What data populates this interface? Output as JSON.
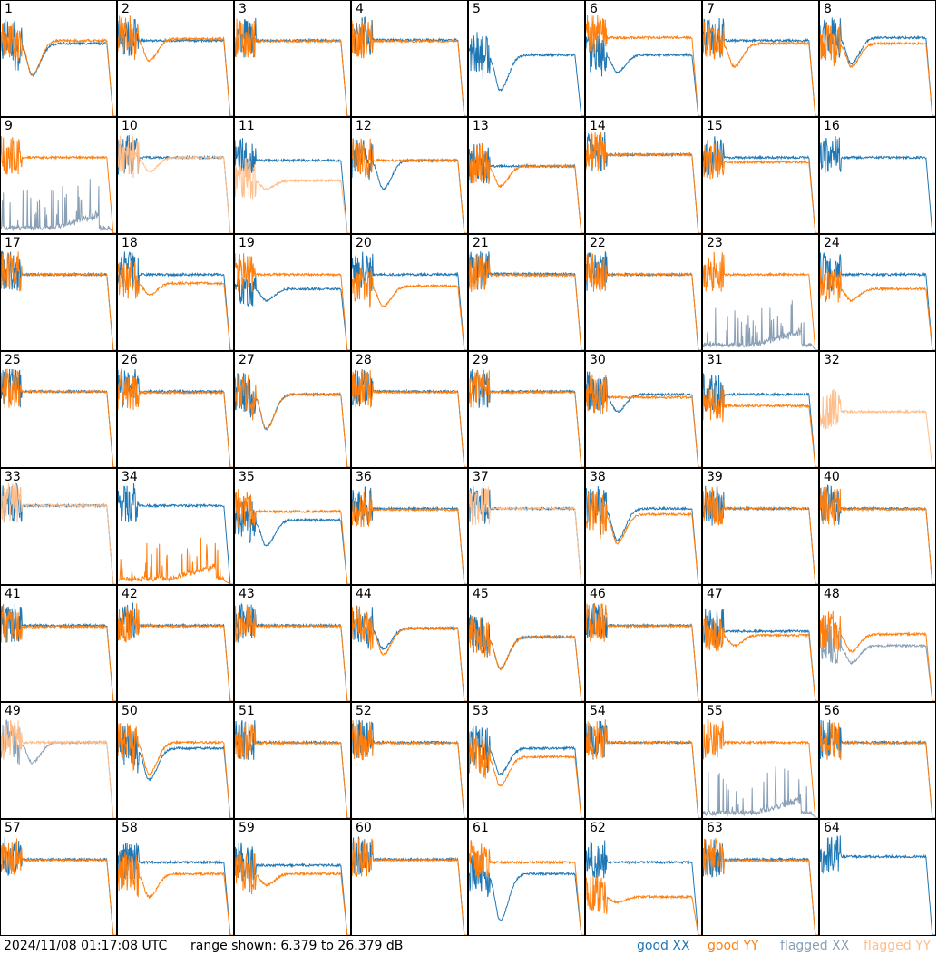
{
  "chart_data": {
    "type": "line",
    "ylim": [
      6.379,
      26.379
    ],
    "yunit": "dB",
    "grid": false,
    "legend_placement": "bottom-right",
    "legend": [
      {
        "label": "good XX",
        "color": "#1f77b4"
      },
      {
        "label": "good YY",
        "color": "#ff7f0e"
      },
      {
        "label": "flagged XX",
        "color": "#8aa0b6"
      },
      {
        "label": "flagged YY",
        "color": "#ffbe8a"
      }
    ],
    "panels": [
      {
        "label": "1",
        "xx": [
          19,
          13.5
        ],
        "yy": [
          19.5,
          13.5
        ]
      },
      {
        "label": "2",
        "xx": [
          19.5,
          null
        ],
        "yy": [
          19.8,
          16
        ]
      },
      {
        "label": "3",
        "xx": [
          19.5,
          null
        ],
        "yy": [
          19.4,
          null
        ]
      },
      {
        "label": "4",
        "xx": [
          19.6,
          null
        ],
        "yy": [
          19.4,
          null
        ]
      },
      {
        "label": "5",
        "xx": [
          17,
          10.9
        ],
        "yy": null
      },
      {
        "label": "6",
        "xx": [
          17,
          14
        ],
        "yy": [
          20,
          null
        ]
      },
      {
        "label": "7",
        "xx": [
          19.5,
          null
        ],
        "yy": [
          19,
          15
        ]
      },
      {
        "label": "8",
        "xx": [
          20,
          15.5
        ],
        "yy": [
          19,
          15
        ]
      },
      {
        "label": "9",
        "xx": [
          8,
          null
        ],
        "yy": [
          19.5,
          null
        ],
        "xx_flagged": true
      },
      {
        "label": "10",
        "xx": [
          19.5,
          null
        ],
        "yy": [
          19.5,
          17
        ],
        "yy_flagged": true
      },
      {
        "label": "11",
        "xx": [
          19,
          null
        ],
        "yy": [
          15.5,
          14
        ],
        "yy_flagged": true
      },
      {
        "label": "12",
        "xx": [
          19,
          14
        ],
        "yy": [
          19,
          null
        ]
      },
      {
        "label": "13",
        "xx": [
          18,
          null
        ],
        "yy": [
          18,
          14.5
        ]
      },
      {
        "label": "14",
        "xx": [
          20,
          null
        ],
        "yy": [
          20,
          null
        ]
      },
      {
        "label": "15",
        "xx": [
          19.5,
          null
        ],
        "yy": [
          18.7,
          null
        ]
      },
      {
        "label": "16",
        "xx": [
          19.5,
          null
        ],
        "yy": null
      },
      {
        "label": "17",
        "xx": [
          19.5,
          null
        ],
        "yy": [
          19.5,
          null
        ]
      },
      {
        "label": "18",
        "xx": [
          19.5,
          null
        ],
        "yy": [
          18,
          16
        ]
      },
      {
        "label": "19",
        "xx": [
          17,
          15
        ],
        "yy": [
          19.5,
          null
        ]
      },
      {
        "label": "20",
        "xx": [
          19.5,
          null
        ],
        "yy": [
          17.5,
          14
        ]
      },
      {
        "label": "21",
        "xx": [
          19.6,
          null
        ],
        "yy": [
          19.4,
          null
        ]
      },
      {
        "label": "22",
        "xx": [
          19.5,
          null
        ],
        "yy": [
          19.5,
          null
        ]
      },
      {
        "label": "23",
        "xx": [
          8,
          null
        ],
        "yy": [
          19.5,
          null
        ],
        "xx_flagged": true
      },
      {
        "label": "24",
        "xx": [
          19.5,
          null
        ],
        "yy": [
          17,
          15
        ]
      },
      {
        "label": "25",
        "xx": [
          19.5,
          null
        ],
        "yy": [
          19.5,
          null
        ]
      },
      {
        "label": "26",
        "xx": [
          19.5,
          null
        ],
        "yy": [
          19.3,
          null
        ]
      },
      {
        "label": "27",
        "xx": [
          19,
          13
        ],
        "yy": [
          19,
          13
        ]
      },
      {
        "label": "28",
        "xx": [
          19.5,
          null
        ],
        "yy": [
          19.4,
          null
        ]
      },
      {
        "label": "29",
        "xx": [
          19.5,
          null
        ],
        "yy": [
          19.4,
          null
        ]
      },
      {
        "label": "30",
        "xx": [
          19,
          16
        ],
        "yy": [
          18.5,
          null
        ]
      },
      {
        "label": "31",
        "xx": [
          19,
          null
        ],
        "yy": [
          17,
          null
        ]
      },
      {
        "label": "32",
        "xx": null,
        "yy": [
          16,
          null
        ],
        "yy_flagged": true
      },
      {
        "label": "33",
        "xx": [
          20,
          null
        ],
        "yy": [
          20,
          null
        ],
        "yy_flagged": true
      },
      {
        "label": "34",
        "xx": [
          20,
          null
        ],
        "yy": [
          7,
          null
        ]
      },
      {
        "label": "35",
        "xx": [
          17.5,
          13
        ],
        "yy": [
          19,
          null
        ]
      },
      {
        "label": "36",
        "xx": [
          19.5,
          null
        ],
        "yy": [
          19.3,
          null
        ]
      },
      {
        "label": "37",
        "xx": [
          19.5,
          null
        ],
        "yy": [
          19.5,
          null
        ],
        "yy_flagged": true
      },
      {
        "label": "38",
        "xx": [
          19.5,
          14
        ],
        "yy": [
          18.5,
          13.5
        ]
      },
      {
        "label": "39",
        "xx": [
          19.5,
          null
        ],
        "yy": [
          19.5,
          null
        ]
      },
      {
        "label": "40",
        "xx": [
          19.5,
          null
        ],
        "yy": [
          19.4,
          null
        ]
      },
      {
        "label": "41",
        "xx": [
          19.5,
          null
        ],
        "yy": [
          19.3,
          null
        ]
      },
      {
        "label": "42",
        "xx": [
          19.5,
          null
        ],
        "yy": [
          19.4,
          null
        ]
      },
      {
        "label": "43",
        "xx": [
          19.5,
          null
        ],
        "yy": [
          19.4,
          null
        ]
      },
      {
        "label": "44",
        "xx": [
          19,
          15.5
        ],
        "yy": [
          19,
          14.5
        ]
      },
      {
        "label": "45",
        "xx": [
          17.5,
          12
        ],
        "yy": [
          17.5,
          12
        ]
      },
      {
        "label": "46",
        "xx": [
          19.5,
          null
        ],
        "yy": [
          19.4,
          null
        ]
      },
      {
        "label": "47",
        "xx": [
          18.5,
          null
        ],
        "yy": [
          17.8,
          16
        ]
      },
      {
        "label": "48",
        "xx": [
          16,
          13
        ],
        "yy": [
          18,
          15
        ],
        "xx_flagged": true
      },
      {
        "label": "49",
        "xx": [
          19.5,
          16
        ],
        "yy": [
          19.5,
          null
        ],
        "xx_flagged": true,
        "yy_flagged": true
      },
      {
        "label": "50",
        "xx": [
          18.5,
          13
        ],
        "yy": [
          19.5,
          14
        ]
      },
      {
        "label": "51",
        "xx": [
          19.5,
          null
        ],
        "yy": [
          19.4,
          null
        ]
      },
      {
        "label": "52",
        "xx": [
          19.5,
          null
        ],
        "yy": [
          19.4,
          null
        ]
      },
      {
        "label": "53",
        "xx": [
          18.5,
          14
        ],
        "yy": [
          17,
          12
        ]
      },
      {
        "label": "54",
        "xx": [
          19.5,
          null
        ],
        "yy": [
          19.5,
          null
        ]
      },
      {
        "label": "55",
        "xx": [
          8,
          null
        ],
        "yy": [
          19.5,
          null
        ],
        "xx_flagged": true
      },
      {
        "label": "56",
        "xx": [
          19.5,
          null
        ],
        "yy": [
          19.4,
          null
        ]
      },
      {
        "label": "57",
        "xx": [
          19.5,
          null
        ],
        "yy": [
          19.4,
          null
        ]
      },
      {
        "label": "58",
        "xx": [
          19,
          null
        ],
        "yy": [
          17,
          13
        ]
      },
      {
        "label": "59",
        "xx": [
          18.5,
          null
        ],
        "yy": [
          17,
          15
        ]
      },
      {
        "label": "60",
        "xx": [
          19.5,
          null
        ],
        "yy": [
          19.4,
          null
        ]
      },
      {
        "label": "61",
        "xx": [
          17,
          9
        ],
        "yy": [
          19,
          null
        ]
      },
      {
        "label": "62",
        "xx": [
          19,
          null
        ],
        "yy": [
          13,
          12
        ]
      },
      {
        "label": "63",
        "xx": [
          19.5,
          null
        ],
        "yy": [
          19.3,
          null
        ]
      },
      {
        "label": "64",
        "xx": [
          20,
          null
        ],
        "yy": null
      }
    ]
  },
  "footer": {
    "timestamp": "2024/11/08 01:17:08 UTC",
    "range": "range shown: 6.379 to 26.379 dB",
    "legend_good_xx": "good XX",
    "legend_good_yy": "good YY",
    "legend_flagged_xx": "flagged XX",
    "legend_flagged_yy": "flagged YY"
  }
}
